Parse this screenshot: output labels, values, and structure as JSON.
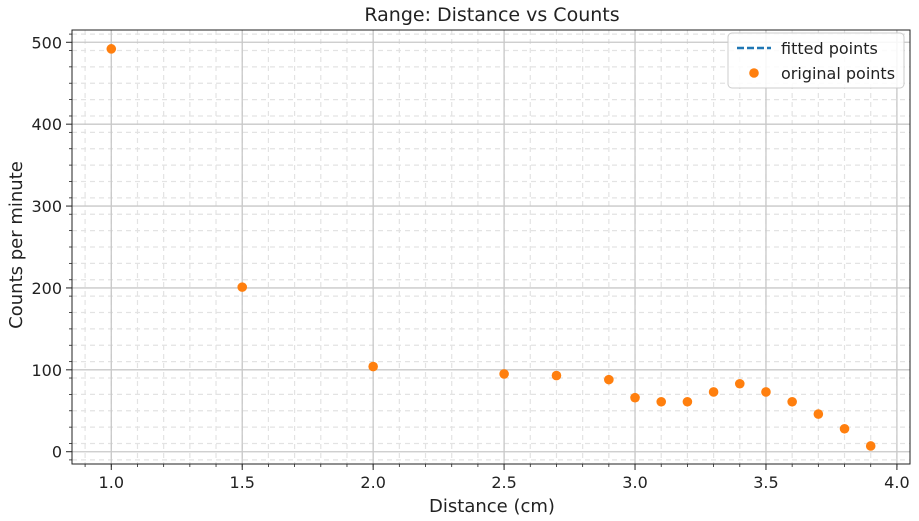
{
  "chart_data": {
    "type": "scatter",
    "title": "Range: Distance vs Counts",
    "xlabel": "Distance (cm)",
    "ylabel": "Counts per minute",
    "xlim": [
      0.85,
      4.05
    ],
    "ylim": [
      -15,
      515
    ],
    "xticks": [
      1.0,
      1.5,
      2.0,
      2.5,
      3.0,
      3.5,
      4.0
    ],
    "xtick_labels": [
      "1.0",
      "1.5",
      "2.0",
      "2.5",
      "3.0",
      "3.5",
      "4.0"
    ],
    "yticks": [
      0,
      100,
      200,
      300,
      400,
      500
    ],
    "ytick_labels": [
      "0",
      "100",
      "200",
      "300",
      "400",
      "500"
    ],
    "grid": true,
    "legend_position": "top-right",
    "series": [
      {
        "name": "fitted points",
        "style": "dashed-line",
        "color": "#1f77b4",
        "x": [],
        "y": []
      },
      {
        "name": "original points",
        "style": "markers",
        "color": "#ff7f0e",
        "x": [
          1.0,
          1.5,
          2.0,
          2.5,
          2.7,
          2.9,
          3.0,
          3.1,
          3.2,
          3.3,
          3.4,
          3.5,
          3.6,
          3.7,
          3.8,
          3.9
        ],
        "y": [
          492,
          201,
          104,
          95,
          93,
          88,
          66,
          61,
          61,
          73,
          83,
          73,
          61,
          46,
          28,
          7
        ]
      }
    ]
  }
}
